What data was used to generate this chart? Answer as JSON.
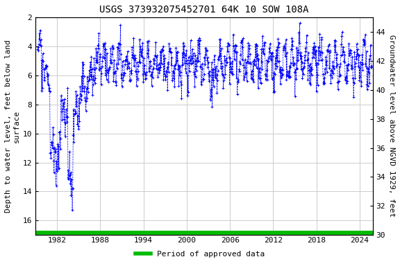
{
  "title": "USGS 373932075452701 64K 10 SOW 108A",
  "ylabel_left": "Depth to water level, feet below land\nsurface",
  "ylabel_right": "Groundwater level above NGVD 1929, feet",
  "xlim": [
    1979.0,
    2025.8
  ],
  "ylim_left": [
    17.0,
    2.0
  ],
  "ylim_right": [
    30.0,
    45.0
  ],
  "xticks": [
    1982,
    1988,
    1994,
    2000,
    2006,
    2012,
    2018,
    2024
  ],
  "yticks_left": [
    2,
    4,
    6,
    8,
    10,
    12,
    14,
    16
  ],
  "yticks_right": [
    30,
    32,
    34,
    36,
    38,
    40,
    42,
    44
  ],
  "title_fontsize": 10,
  "axis_label_fontsize": 8,
  "tick_fontsize": 8,
  "data_color": "#0000FF",
  "green_color": "#00BB00",
  "background_color": "#ffffff",
  "grid_color": "#cccccc",
  "legend_label": "Period of approved data",
  "seed": 42,
  "dt": 0.055,
  "noise_std": 0.65,
  "seasonal_amp": 0.9
}
